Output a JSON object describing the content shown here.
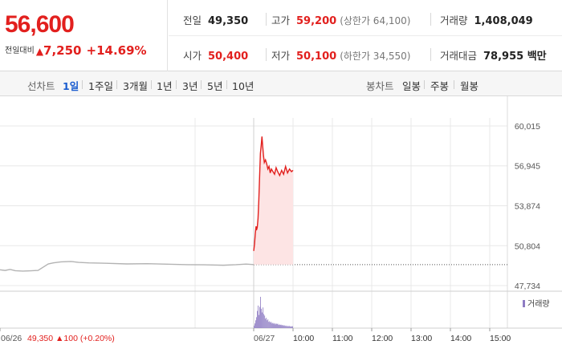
{
  "summary": {
    "price": "56,600",
    "change_label": "전일대비",
    "change_arrow": "▲",
    "change_amount": "7,250",
    "change_pct": "+14.69%",
    "prev_close": {
      "label": "전일",
      "value": "49,350"
    },
    "high": {
      "label": "고가",
      "value": "59,200",
      "limit_text": "(상한가 64,100)"
    },
    "volume": {
      "label": "거래량",
      "value": "1,408,049"
    },
    "open": {
      "label": "시가",
      "value": "50,400"
    },
    "low": {
      "label": "저가",
      "value": "50,100",
      "limit_text": "(하한가 34,550)"
    },
    "trade_value": {
      "label": "거래대금",
      "value": "78,955 백만"
    }
  },
  "tabs": {
    "line_label": "선차트",
    "line_items": [
      "1일",
      "1주일",
      "3개월",
      "1년",
      "3년",
      "5년",
      "10년"
    ],
    "active": "1일",
    "candle_label": "봉차트",
    "candle_items": [
      "일봉",
      "주봉",
      "월봉"
    ]
  },
  "chart_data": {
    "type": "line",
    "price_ticks": [
      "60,015",
      "56,945",
      "53,874",
      "50,804",
      "47,734"
    ],
    "ylim": [
      47734,
      60015
    ],
    "baseline": 49350,
    "volume_legend": "거래량",
    "time_ticks": [
      "10:00",
      "11:00",
      "12:00",
      "13:00",
      "14:00",
      "15:00"
    ],
    "date_ticks": [
      "06/26",
      "06/27"
    ],
    "prev_day_info": {
      "date": "06/26",
      "close": "49,350",
      "arrow": "▲",
      "change": "100",
      "change_pct": "(+0.20%)"
    },
    "prev_day_series": [
      {
        "t": 0.0,
        "y": 48950
      },
      {
        "t": 0.02,
        "y": 48900
      },
      {
        "t": 0.04,
        "y": 48980
      },
      {
        "t": 0.06,
        "y": 48880
      },
      {
        "t": 0.09,
        "y": 48850
      },
      {
        "t": 0.12,
        "y": 48870
      },
      {
        "t": 0.15,
        "y": 48900
      },
      {
        "t": 0.17,
        "y": 49150
      },
      {
        "t": 0.19,
        "y": 49400
      },
      {
        "t": 0.21,
        "y": 49480
      },
      {
        "t": 0.24,
        "y": 49560
      },
      {
        "t": 0.28,
        "y": 49590
      },
      {
        "t": 0.31,
        "y": 49520
      },
      {
        "t": 0.35,
        "y": 49480
      },
      {
        "t": 0.42,
        "y": 49450
      },
      {
        "t": 0.5,
        "y": 49400
      },
      {
        "t": 0.58,
        "y": 49420
      },
      {
        "t": 0.66,
        "y": 49380
      },
      {
        "t": 0.74,
        "y": 49340
      },
      {
        "t": 0.82,
        "y": 49330
      },
      {
        "t": 0.88,
        "y": 49300
      },
      {
        "t": 0.93,
        "y": 49340
      },
      {
        "t": 0.97,
        "y": 49390
      },
      {
        "t": 1.0,
        "y": 49350
      }
    ],
    "today_series": [
      {
        "t": 0.0,
        "y": 50400
      },
      {
        "t": 0.02,
        "y": 50900
      },
      {
        "t": 0.04,
        "y": 51700
      },
      {
        "t": 0.06,
        "y": 52300
      },
      {
        "t": 0.07,
        "y": 52000
      },
      {
        "t": 0.09,
        "y": 52200
      },
      {
        "t": 0.11,
        "y": 52900
      },
      {
        "t": 0.13,
        "y": 54300
      },
      {
        "t": 0.15,
        "y": 56100
      },
      {
        "t": 0.17,
        "y": 57900
      },
      {
        "t": 0.19,
        "y": 58500
      },
      {
        "t": 0.21,
        "y": 59200
      },
      {
        "t": 0.23,
        "y": 58400
      },
      {
        "t": 0.25,
        "y": 57700
      },
      {
        "t": 0.27,
        "y": 57200
      },
      {
        "t": 0.3,
        "y": 57400
      },
      {
        "t": 0.33,
        "y": 57100
      },
      {
        "t": 0.36,
        "y": 56700
      },
      {
        "t": 0.39,
        "y": 56900
      },
      {
        "t": 0.42,
        "y": 56400
      },
      {
        "t": 0.45,
        "y": 56700
      },
      {
        "t": 0.49,
        "y": 56500
      },
      {
        "t": 0.53,
        "y": 56300
      },
      {
        "t": 0.57,
        "y": 56800
      },
      {
        "t": 0.61,
        "y": 56500
      },
      {
        "t": 0.66,
        "y": 56200
      },
      {
        "t": 0.71,
        "y": 56600
      },
      {
        "t": 0.76,
        "y": 56300
      },
      {
        "t": 0.81,
        "y": 56900
      },
      {
        "t": 0.86,
        "y": 56400
      },
      {
        "t": 0.91,
        "y": 56700
      },
      {
        "t": 0.96,
        "y": 56500
      },
      {
        "t": 1.0,
        "y": 56600
      }
    ],
    "today_volume": [
      0.08,
      0.15,
      0.25,
      0.35,
      0.55,
      0.72,
      0.42,
      0.68,
      1.0,
      0.62,
      0.5,
      0.66,
      0.45,
      0.4,
      0.3,
      0.33,
      0.25,
      0.28,
      0.2,
      0.22,
      0.18,
      0.2,
      0.15,
      0.17,
      0.14,
      0.16,
      0.12,
      0.15,
      0.13,
      0.14,
      0.1,
      0.12,
      0.1,
      0.11,
      0.09,
      0.1,
      0.08,
      0.09,
      0.07,
      0.08,
      0.06,
      0.07,
      0.06,
      0.07,
      0.05,
      0.06,
      0.05,
      0.06
    ]
  },
  "colors": {
    "up": "#e2201e",
    "fill": "#fde4e4",
    "prev_line": "#b3b3b3",
    "volume": "#8e7cc3",
    "grid": "#e8e8e8",
    "active_tab": "#1a5ccf"
  }
}
